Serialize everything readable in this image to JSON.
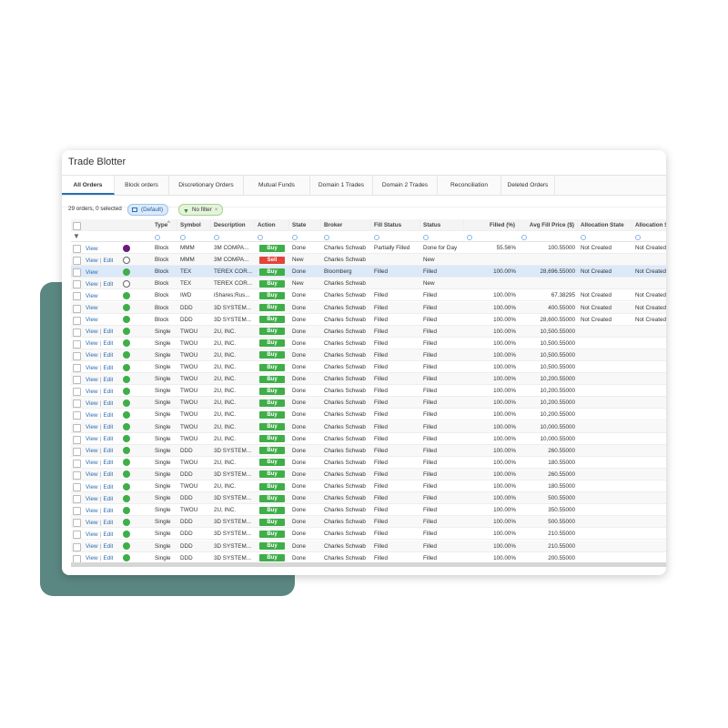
{
  "title": "Trade Blotter",
  "tabs": [
    "All Orders",
    "Block orders",
    "Discretionary Orders",
    "Mutual Funds",
    "Domain 1 Trades",
    "Domain 2 Trades",
    "Reconciliation",
    "Deleted Orders"
  ],
  "active_tab": 0,
  "toolbar": {
    "summary": "29 orders, 0 selected",
    "view_chip": "(Default)",
    "filter_chip": "No filter"
  },
  "action_colors": {
    "Buy": "#3fae49",
    "Sell": "#e0453c"
  },
  "indicator_colors": {
    "purple": "#6a1b7a",
    "green": "#3fae49",
    "empty": "none"
  },
  "table": {
    "columns": [
      "Type",
      "Symbol",
      "Description",
      "Action",
      "State",
      "Broker",
      "Fill Status",
      "Status",
      "Filled (%)",
      "Avg Fill Price ($)",
      "Allocation State",
      "Allocation S"
    ],
    "rows": [
      {
        "links": [
          "View"
        ],
        "indicator": "purple",
        "cells": [
          "Block",
          "MMM",
          "3M COMPA...",
          "Buy",
          "Done",
          "Charles Schwab",
          "Partially Filled",
          "Done for Day",
          "55.56%",
          "100.55000",
          "Not Created",
          "Not Created"
        ]
      },
      {
        "links": [
          "View",
          "Edit"
        ],
        "indicator": "empty",
        "cells": [
          "Block",
          "MMM",
          "3M COMPA...",
          "Sell",
          "New",
          "Charles Schwab",
          null,
          "New",
          null,
          null,
          null,
          null
        ]
      },
      {
        "links": [
          "View"
        ],
        "indicator": "green",
        "selected": true,
        "cells": [
          "Block",
          "TEX",
          "TEREX COR...",
          "Buy",
          "Done",
          "Bloomberg",
          "Filled",
          "Filled",
          "100.00%",
          "28,696.55000",
          "Not Created",
          "Not Created"
        ]
      },
      {
        "links": [
          "View",
          "Edit"
        ],
        "indicator": "empty",
        "cells": [
          "Block",
          "TEX",
          "TEREX COR...",
          "Buy",
          "New",
          "Charles Schwab",
          null,
          "New",
          null,
          null,
          null,
          null
        ]
      },
      {
        "links": [
          "View"
        ],
        "indicator": "green",
        "cells": [
          "Block",
          "IWD",
          "iShares:Rus...",
          "Buy",
          "Done",
          "Charles Schwab",
          "Filled",
          "Filled",
          "100.00%",
          "67.38295",
          "Not Created",
          "Not Created"
        ]
      },
      {
        "links": [
          "View"
        ],
        "indicator": "green",
        "cells": [
          "Block",
          "DDD",
          "3D SYSTEM...",
          "Buy",
          "Done",
          "Charles Schwab",
          "Filled",
          "Filled",
          "100.00%",
          "400.55000",
          "Not Created",
          "Not Created"
        ]
      },
      {
        "links": [
          "View"
        ],
        "indicator": "green",
        "cells": [
          "Block",
          "DDD",
          "3D SYSTEM...",
          "Buy",
          "Done",
          "Charles Schwab",
          "Filled",
          "Filled",
          "100.00%",
          "28,600.55000",
          "Not Created",
          "Not Created"
        ]
      },
      {
        "links": [
          "View",
          "Edit"
        ],
        "indicator": "green",
        "cells": [
          "Single",
          "TWOU",
          "2U, INC.",
          "Buy",
          "Done",
          "Charles Schwab",
          "Filled",
          "Filled",
          "100.00%",
          "10,500.55000",
          null,
          null
        ]
      },
      {
        "links": [
          "View",
          "Edit"
        ],
        "indicator": "green",
        "cells": [
          "Single",
          "TWOU",
          "2U, INC.",
          "Buy",
          "Done",
          "Charles Schwab",
          "Filled",
          "Filled",
          "100.00%",
          "10,500.55000",
          null,
          null
        ]
      },
      {
        "links": [
          "View",
          "Edit"
        ],
        "indicator": "green",
        "cells": [
          "Single",
          "TWOU",
          "2U, INC.",
          "Buy",
          "Done",
          "Charles Schwab",
          "Filled",
          "Filled",
          "100.00%",
          "10,500.55000",
          null,
          null
        ]
      },
      {
        "links": [
          "View",
          "Edit"
        ],
        "indicator": "green",
        "cells": [
          "Single",
          "TWOU",
          "2U, INC.",
          "Buy",
          "Done",
          "Charles Schwab",
          "Filled",
          "Filled",
          "100.00%",
          "10,500.55000",
          null,
          null
        ]
      },
      {
        "links": [
          "View",
          "Edit"
        ],
        "indicator": "green",
        "cells": [
          "Single",
          "TWOU",
          "2U, INC.",
          "Buy",
          "Done",
          "Charles Schwab",
          "Filled",
          "Filled",
          "100.00%",
          "10,200.55000",
          null,
          null
        ]
      },
      {
        "links": [
          "View",
          "Edit"
        ],
        "indicator": "green",
        "cells": [
          "Single",
          "TWOU",
          "2U, INC.",
          "Buy",
          "Done",
          "Charles Schwab",
          "Filled",
          "Filled",
          "100.00%",
          "10,200.55000",
          null,
          null
        ]
      },
      {
        "links": [
          "View",
          "Edit"
        ],
        "indicator": "green",
        "cells": [
          "Single",
          "TWOU",
          "2U, INC.",
          "Buy",
          "Done",
          "Charles Schwab",
          "Filled",
          "Filled",
          "100.00%",
          "10,200.55000",
          null,
          null
        ]
      },
      {
        "links": [
          "View",
          "Edit"
        ],
        "indicator": "green",
        "cells": [
          "Single",
          "TWOU",
          "2U, INC.",
          "Buy",
          "Done",
          "Charles Schwab",
          "Filled",
          "Filled",
          "100.00%",
          "10,200.55000",
          null,
          null
        ]
      },
      {
        "links": [
          "View",
          "Edit"
        ],
        "indicator": "green",
        "cells": [
          "Single",
          "TWOU",
          "2U, INC.",
          "Buy",
          "Done",
          "Charles Schwab",
          "Filled",
          "Filled",
          "100.00%",
          "10,000.55000",
          null,
          null
        ]
      },
      {
        "links": [
          "View",
          "Edit"
        ],
        "indicator": "green",
        "cells": [
          "Single",
          "TWOU",
          "2U, INC.",
          "Buy",
          "Done",
          "Charles Schwab",
          "Filled",
          "Filled",
          "100.00%",
          "10,000.55000",
          null,
          null
        ]
      },
      {
        "links": [
          "View",
          "Edit"
        ],
        "indicator": "green",
        "cells": [
          "Single",
          "DDD",
          "3D SYSTEM...",
          "Buy",
          "Done",
          "Charles Schwab",
          "Filled",
          "Filled",
          "100.00%",
          "260.55000",
          null,
          null
        ]
      },
      {
        "links": [
          "View",
          "Edit"
        ],
        "indicator": "green",
        "cells": [
          "Single",
          "TWOU",
          "2U, INC.",
          "Buy",
          "Done",
          "Charles Schwab",
          "Filled",
          "Filled",
          "100.00%",
          "180.55000",
          null,
          null
        ]
      },
      {
        "links": [
          "View",
          "Edit"
        ],
        "indicator": "green",
        "cells": [
          "Single",
          "DDD",
          "3D SYSTEM...",
          "Buy",
          "Done",
          "Charles Schwab",
          "Filled",
          "Filled",
          "100.00%",
          "260.55000",
          null,
          null
        ]
      },
      {
        "links": [
          "View",
          "Edit"
        ],
        "indicator": "green",
        "cells": [
          "Single",
          "TWOU",
          "2U, INC.",
          "Buy",
          "Done",
          "Charles Schwab",
          "Filled",
          "Filled",
          "100.00%",
          "180.55000",
          null,
          null
        ]
      },
      {
        "links": [
          "View",
          "Edit"
        ],
        "indicator": "green",
        "cells": [
          "Single",
          "DDD",
          "3D SYSTEM...",
          "Buy",
          "Done",
          "Charles Schwab",
          "Filled",
          "Filled",
          "100.00%",
          "500.55000",
          null,
          null
        ]
      },
      {
        "links": [
          "View",
          "Edit"
        ],
        "indicator": "green",
        "cells": [
          "Single",
          "TWOU",
          "2U, INC.",
          "Buy",
          "Done",
          "Charles Schwab",
          "Filled",
          "Filled",
          "100.00%",
          "350.55000",
          null,
          null
        ]
      },
      {
        "links": [
          "View",
          "Edit"
        ],
        "indicator": "green",
        "cells": [
          "Single",
          "DDD",
          "3D SYSTEM...",
          "Buy",
          "Done",
          "Charles Schwab",
          "Filled",
          "Filled",
          "100.00%",
          "500.55000",
          null,
          null
        ]
      },
      {
        "links": [
          "View",
          "Edit"
        ],
        "indicator": "green",
        "cells": [
          "Single",
          "DDD",
          "3D SYSTEM...",
          "Buy",
          "Done",
          "Charles Schwab",
          "Filled",
          "Filled",
          "100.00%",
          "210.55000",
          null,
          null
        ]
      },
      {
        "links": [
          "View",
          "Edit"
        ],
        "indicator": "green",
        "cells": [
          "Single",
          "DDD",
          "3D SYSTEM...",
          "Buy",
          "Done",
          "Charles Schwab",
          "Filled",
          "Filled",
          "100.00%",
          "210.55000",
          null,
          null
        ]
      },
      {
        "links": [
          "View",
          "Edit"
        ],
        "indicator": "green",
        "cells": [
          "Single",
          "DDD",
          "3D SYSTEM...",
          "Buy",
          "Done",
          "Charles Schwab",
          "Filled",
          "Filled",
          "100.00%",
          "200.55000",
          null,
          null
        ]
      }
    ]
  }
}
